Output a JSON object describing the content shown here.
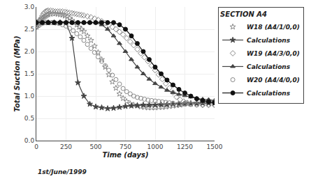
{
  "chart_data": {
    "type": "line",
    "title": "SECTION A4",
    "x_label": "Time (days)",
    "y_label": "Total Suction (MPa)",
    "annotations": [
      "1st/June/1999"
    ],
    "xlim": [
      0,
      1500
    ],
    "ylim": [
      0.0,
      3.0
    ],
    "xticks": [
      0,
      250,
      500,
      750,
      1000,
      1250,
      1500
    ],
    "yticks": [
      {
        "value": 0.0,
        "label": "0.0"
      },
      0.5,
      {
        "value": 1.0,
        "label": "1.0"
      },
      1.5,
      {
        "value": 2.0,
        "label": "2.0"
      },
      2.5,
      {
        "value": 3.0,
        "label": "3.0"
      }
    ],
    "grid": true,
    "legend": "upper right",
    "series": [
      {
        "name": "W18 (A4/1/0,0)",
        "type": "scatter",
        "marker": "star-open",
        "color": "#888888",
        "x": [
          0,
          10,
          20,
          30,
          40,
          50,
          60,
          70,
          80,
          90,
          100,
          120,
          140,
          160,
          180,
          200,
          220,
          240,
          260,
          280,
          300,
          320,
          340,
          360,
          380,
          400,
          430,
          460,
          490,
          520,
          550,
          580,
          610,
          640,
          670,
          700,
          730,
          760,
          790,
          820,
          850,
          880,
          910,
          940,
          970,
          1000,
          1030,
          1060,
          1090,
          1120,
          1150,
          1180,
          1210,
          1240,
          1270,
          1300,
          1350,
          1400,
          1450,
          1500
        ],
        "values": [
          2.55,
          2.6,
          2.65,
          2.7,
          2.72,
          2.74,
          2.76,
          2.78,
          2.8,
          2.82,
          2.83,
          2.84,
          2.85,
          2.85,
          2.84,
          2.83,
          2.82,
          2.8,
          2.78,
          2.75,
          2.7,
          2.65,
          2.6,
          2.55,
          2.5,
          2.45,
          2.35,
          2.25,
          2.12,
          1.98,
          1.82,
          1.65,
          1.48,
          1.32,
          1.18,
          1.05,
          0.95,
          0.88,
          0.83,
          0.8,
          0.78,
          0.76,
          0.75,
          0.74,
          0.74,
          0.74,
          0.75,
          0.75,
          0.76,
          0.77,
          0.78,
          0.79,
          0.8,
          0.82,
          0.83,
          0.84,
          0.85,
          0.86,
          0.87,
          0.88
        ]
      },
      {
        "name": "Calculations",
        "type": "line",
        "marker": "star",
        "color": "#444444",
        "x": [
          0,
          50,
          100,
          150,
          200,
          250,
          300,
          350,
          400,
          450,
          500,
          550,
          600,
          650,
          700,
          750,
          800,
          850,
          900,
          950,
          1000,
          1050,
          1100,
          1150,
          1200,
          1250,
          1300,
          1350,
          1400,
          1450,
          1500
        ],
        "values": [
          2.65,
          2.65,
          2.65,
          2.65,
          2.65,
          2.65,
          2.3,
          1.3,
          1.0,
          0.82,
          0.76,
          0.74,
          0.72,
          0.73,
          0.75,
          0.77,
          0.78,
          0.79,
          0.8,
          0.8,
          0.8,
          0.81,
          0.81,
          0.82,
          0.82,
          0.83,
          0.83,
          0.83,
          0.84,
          0.84,
          0.84
        ]
      },
      {
        "name": "W19 (A4/3/0,0)",
        "type": "scatter",
        "marker": "diamond-open",
        "color": "#888888",
        "x": [
          0,
          10,
          20,
          30,
          40,
          50,
          60,
          70,
          80,
          90,
          100,
          120,
          140,
          160,
          180,
          200,
          220,
          240,
          260,
          280,
          300,
          320,
          340,
          360,
          380,
          400,
          430,
          460,
          490,
          520,
          550,
          580,
          610,
          640,
          670,
          700,
          730,
          760,
          790,
          820,
          850,
          880,
          910,
          940,
          970,
          1000,
          1030,
          1060,
          1090,
          1120,
          1150,
          1180,
          1210,
          1240,
          1270,
          1300,
          1350,
          1400,
          1450,
          1500
        ],
        "values": [
          2.55,
          2.6,
          2.65,
          2.7,
          2.75,
          2.8,
          2.85,
          2.88,
          2.9,
          2.91,
          2.92,
          2.92,
          2.91,
          2.9,
          2.9,
          2.9,
          2.9,
          2.89,
          2.88,
          2.87,
          2.86,
          2.85,
          2.84,
          2.83,
          2.82,
          2.81,
          2.79,
          2.77,
          2.74,
          2.71,
          2.68,
          2.64,
          2.6,
          2.55,
          2.5,
          2.44,
          2.38,
          2.3,
          2.22,
          2.14,
          2.05,
          1.96,
          1.87,
          1.78,
          1.68,
          1.58,
          1.48,
          1.38,
          1.28,
          1.18,
          1.08,
          0.98,
          0.92,
          0.88,
          0.85,
          0.83,
          0.81,
          0.8,
          0.8,
          0.8
        ]
      },
      {
        "name": "Calculations",
        "type": "line",
        "marker": "triangle-up",
        "color": "#444444",
        "x": [
          0,
          50,
          100,
          150,
          200,
          250,
          300,
          350,
          400,
          450,
          500,
          550,
          600,
          650,
          700,
          750,
          800,
          850,
          900,
          950,
          1000,
          1050,
          1100,
          1150,
          1200,
          1250,
          1300,
          1350,
          1400,
          1450,
          1500
        ],
        "values": [
          2.65,
          2.65,
          2.65,
          2.65,
          2.65,
          2.65,
          2.65,
          2.65,
          2.65,
          2.65,
          2.65,
          2.6,
          2.5,
          2.35,
          2.18,
          2.0,
          1.82,
          1.65,
          1.5,
          1.38,
          1.28,
          1.2,
          1.13,
          1.08,
          1.04,
          1.01,
          0.98,
          0.95,
          0.93,
          0.92,
          0.9
        ]
      },
      {
        "name": "W20 (A4/4/0,0)",
        "type": "scatter",
        "marker": "circle-open",
        "color": "#888888",
        "x": [
          0,
          20,
          40,
          60,
          80,
          100,
          130,
          160,
          190,
          220,
          250,
          280,
          310,
          340,
          370,
          400,
          430,
          460,
          490,
          520,
          550,
          580,
          610,
          640,
          670,
          700,
          730,
          760,
          790,
          820,
          850,
          880,
          910,
          940,
          970,
          1000,
          1030,
          1060,
          1090,
          1120,
          1150,
          1200,
          1250,
          1300,
          1350,
          1400,
          1450,
          1500
        ],
        "values": [
          2.55,
          2.58,
          2.62,
          2.64,
          2.65,
          2.65,
          2.65,
          2.64,
          2.63,
          2.6,
          2.57,
          2.52,
          2.47,
          2.4,
          2.33,
          2.25,
          2.16,
          2.07,
          1.98,
          1.88,
          1.78,
          1.68,
          1.58,
          1.47,
          1.37,
          1.27,
          1.17,
          1.1,
          1.05,
          1.0,
          0.97,
          0.95,
          0.93,
          0.91,
          0.9,
          0.89,
          0.88,
          0.87,
          0.86,
          0.85,
          0.84,
          0.83,
          0.82,
          0.81,
          0.8,
          0.8,
          0.8,
          0.8
        ]
      },
      {
        "name": "Calculations",
        "type": "line",
        "marker": "circle",
        "color": "#111111",
        "x": [
          0,
          50,
          100,
          150,
          200,
          250,
          300,
          350,
          400,
          450,
          500,
          550,
          600,
          650,
          700,
          750,
          800,
          850,
          900,
          950,
          1000,
          1050,
          1100,
          1150,
          1200,
          1250,
          1300,
          1350,
          1400,
          1450,
          1500
        ],
        "values": [
          2.65,
          2.65,
          2.65,
          2.65,
          2.65,
          2.65,
          2.65,
          2.65,
          2.65,
          2.65,
          2.65,
          2.65,
          2.65,
          2.65,
          2.6,
          2.5,
          2.35,
          2.18,
          2.0,
          1.82,
          1.65,
          1.5,
          1.36,
          1.25,
          1.15,
          1.07,
          1.0,
          0.94,
          0.9,
          0.87,
          0.85
        ]
      }
    ]
  }
}
